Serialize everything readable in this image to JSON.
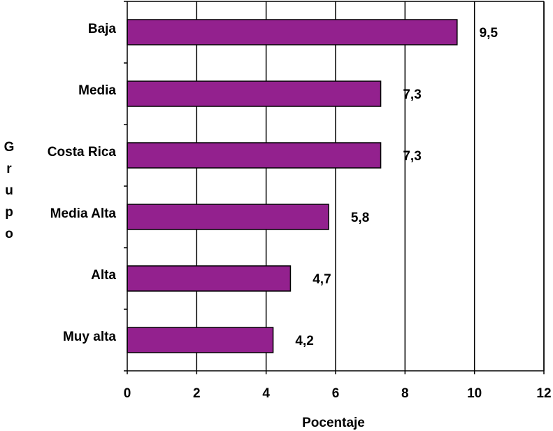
{
  "chart_data": {
    "type": "bar",
    "orientation": "horizontal",
    "categories": [
      "Baja",
      "Media",
      "Costa Rica",
      "Media Alta",
      "Alta",
      "Muy alta"
    ],
    "values": [
      9.5,
      7.3,
      7.3,
      5.8,
      4.7,
      4.2
    ],
    "value_labels": [
      "9,5",
      "7,3",
      "7,3",
      "5,8",
      "4,7",
      "4,2"
    ],
    "xlabel": "Pocentaje",
    "ylabel": "Grupo",
    "xlim": [
      0,
      12
    ],
    "xticks": [
      0,
      2,
      4,
      6,
      8,
      10,
      12
    ],
    "grid": "vertical",
    "legend": "none",
    "colors": {
      "bar": "#93218E",
      "bar_stroke": "#000000",
      "grid": "#000000"
    }
  }
}
